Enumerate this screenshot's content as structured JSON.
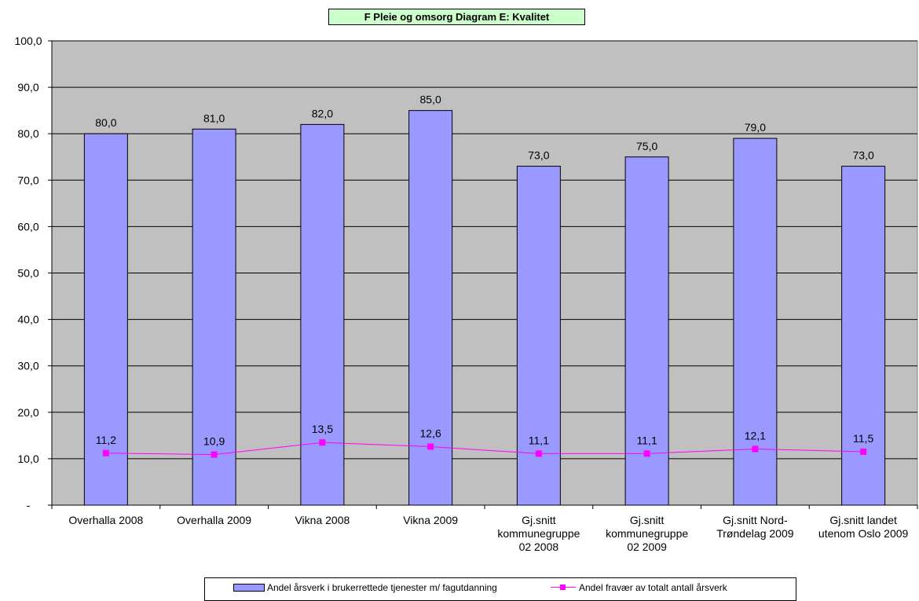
{
  "chart_data": {
    "type": "bar",
    "title": "F Pleie og omsorg Diagram E: Kvalitet",
    "categories": [
      [
        "Overhalla 2008"
      ],
      [
        "Overhalla 2009"
      ],
      [
        "Vikna 2008"
      ],
      [
        "Vikna 2009"
      ],
      [
        "Gj.snitt",
        "kommunegruppe",
        "02 2008"
      ],
      [
        "Gj.snitt",
        "kommunegruppe",
        "02 2009"
      ],
      [
        "Gj.snitt Nord-",
        "Trøndelag 2009"
      ],
      [
        "Gj.snitt landet",
        "utenom Oslo 2009"
      ]
    ],
    "ylim": [
      0,
      100
    ],
    "yticks": [
      0,
      10,
      20,
      30,
      40,
      50,
      60,
      70,
      80,
      90,
      100
    ],
    "ytick_labels": [
      "-",
      "10,0",
      "20,0",
      "30,0",
      "40,0",
      "50,0",
      "60,0",
      "70,0",
      "80,0",
      "90,0",
      "100,0"
    ],
    "grid": true,
    "legend_position": "bottom",
    "series": [
      {
        "name": "Andel årsverk i brukerrettede tjenester m/ fagutdanning",
        "type": "bar",
        "color": "#9999ff",
        "values": [
          80.0,
          81.0,
          82.0,
          85.0,
          73.0,
          75.0,
          79.0,
          73.0
        ],
        "labels": [
          "80,0",
          "81,0",
          "82,0",
          "85,0",
          "73,0",
          "75,0",
          "79,0",
          "73,0"
        ]
      },
      {
        "name": "Andel fravær av totalt antall årsverk",
        "type": "line",
        "color": "#ff00ff",
        "values": [
          11.2,
          10.9,
          13.5,
          12.6,
          11.1,
          11.1,
          12.1,
          11.5
        ],
        "labels": [
          "11,2",
          "10,9",
          "13,5",
          "12,6",
          "11,1",
          "11,1",
          "12,1",
          "11,5"
        ]
      }
    ],
    "plot_background": "#c0c0c0"
  }
}
